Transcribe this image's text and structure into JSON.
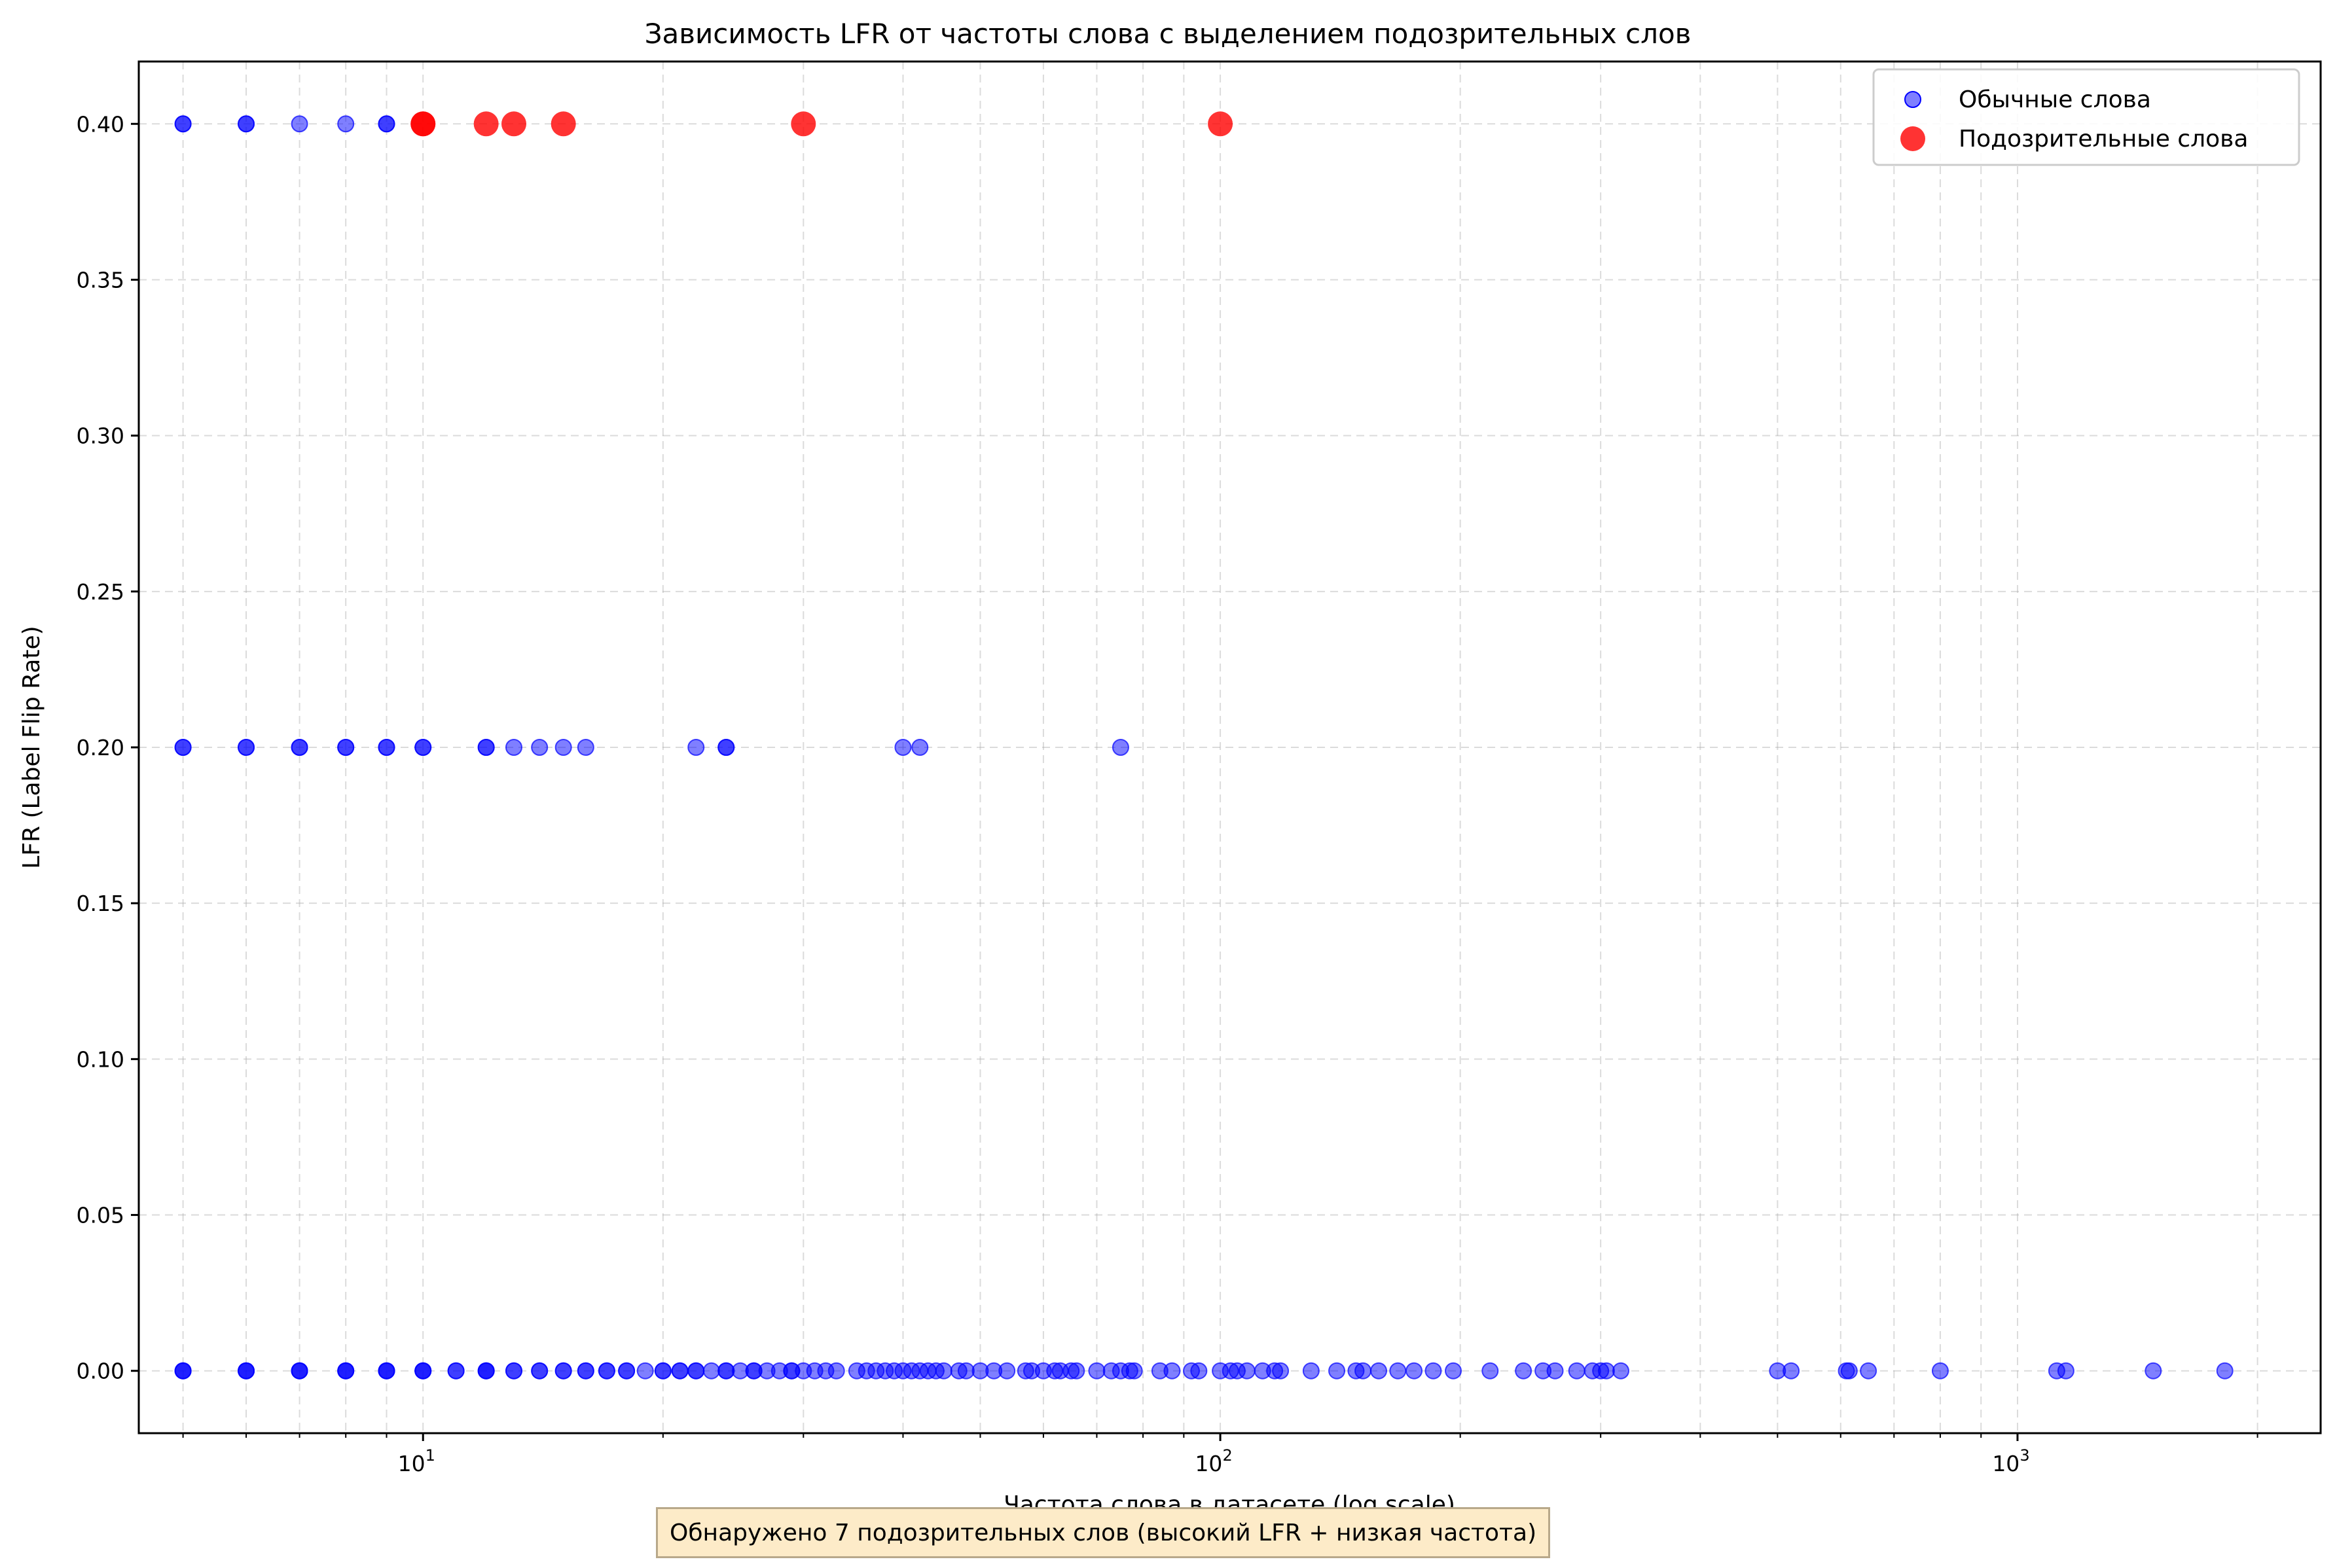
{
  "chart_data": {
    "type": "scatter",
    "title": "Зависимость LFR от частоты слова с выделением подозрительных слов",
    "xlabel": "Частота слова в датасете (log scale)",
    "ylabel": "LFR (Label Flip Rate)",
    "xscale": "log",
    "xlim": [
      4.4,
      2400
    ],
    "ylim": [
      -0.02,
      0.42
    ],
    "x_ticks": [
      {
        "value": 10,
        "base": "10",
        "exp": "1"
      },
      {
        "value": 100,
        "base": "10",
        "exp": "2"
      },
      {
        "value": 1000,
        "base": "10",
        "exp": "3"
      }
    ],
    "y_ticks": [
      "0.00",
      "0.05",
      "0.10",
      "0.15",
      "0.20",
      "0.25",
      "0.30",
      "0.35",
      "0.40"
    ],
    "grid": true,
    "legend_position": "top-right",
    "annotation": "Обнаружено 7 подозрительных слов (высокий LFR + низкая частота)",
    "series": [
      {
        "name": "Обычные слова",
        "color": "#0000ff",
        "alpha": 0.5,
        "marker": "small-circle",
        "points": [
          [
            5,
            0.4
          ],
          [
            6,
            0.4
          ],
          [
            7,
            0.4
          ],
          [
            8,
            0.4
          ],
          [
            9,
            0.4
          ],
          [
            9,
            0.4
          ],
          [
            6,
            0.4
          ],
          [
            5,
            0.4
          ],
          [
            5,
            0.2
          ],
          [
            5,
            0.2
          ],
          [
            6,
            0.2
          ],
          [
            6,
            0.2
          ],
          [
            7,
            0.2
          ],
          [
            7,
            0.2
          ],
          [
            8,
            0.2
          ],
          [
            8,
            0.2
          ],
          [
            9,
            0.2
          ],
          [
            9,
            0.2
          ],
          [
            10,
            0.2
          ],
          [
            10,
            0.2
          ],
          [
            12,
            0.2
          ],
          [
            12,
            0.2
          ],
          [
            13,
            0.2
          ],
          [
            14,
            0.2
          ],
          [
            15,
            0.2
          ],
          [
            16,
            0.2
          ],
          [
            22,
            0.2
          ],
          [
            24,
            0.2
          ],
          [
            24,
            0.2
          ],
          [
            40,
            0.2
          ],
          [
            42,
            0.2
          ],
          [
            75,
            0.2
          ],
          [
            5,
            0
          ],
          [
            5,
            0
          ],
          [
            5,
            0
          ],
          [
            6,
            0
          ],
          [
            6,
            0
          ],
          [
            6,
            0
          ],
          [
            7,
            0
          ],
          [
            7,
            0
          ],
          [
            7,
            0
          ],
          [
            8,
            0
          ],
          [
            8,
            0
          ],
          [
            8,
            0
          ],
          [
            9,
            0
          ],
          [
            9,
            0
          ],
          [
            9,
            0
          ],
          [
            10,
            0
          ],
          [
            10,
            0
          ],
          [
            10,
            0
          ],
          [
            11,
            0
          ],
          [
            11,
            0
          ],
          [
            12,
            0
          ],
          [
            12,
            0
          ],
          [
            12,
            0
          ],
          [
            13,
            0
          ],
          [
            13,
            0
          ],
          [
            14,
            0
          ],
          [
            14,
            0
          ],
          [
            15,
            0
          ],
          [
            15,
            0
          ],
          [
            16,
            0
          ],
          [
            16,
            0
          ],
          [
            17,
            0
          ],
          [
            17,
            0
          ],
          [
            18,
            0
          ],
          [
            18,
            0
          ],
          [
            19,
            0
          ],
          [
            20,
            0
          ],
          [
            20,
            0
          ],
          [
            21,
            0
          ],
          [
            21,
            0
          ],
          [
            22,
            0
          ],
          [
            22,
            0
          ],
          [
            23,
            0
          ],
          [
            24,
            0
          ],
          [
            24,
            0
          ],
          [
            25,
            0
          ],
          [
            26,
            0
          ],
          [
            26,
            0
          ],
          [
            27,
            0
          ],
          [
            28,
            0
          ],
          [
            29,
            0
          ],
          [
            29,
            0
          ],
          [
            30,
            0
          ],
          [
            31,
            0
          ],
          [
            32,
            0
          ],
          [
            33,
            0
          ],
          [
            35,
            0
          ],
          [
            36,
            0
          ],
          [
            37,
            0
          ],
          [
            38,
            0
          ],
          [
            39,
            0
          ],
          [
            40,
            0
          ],
          [
            41,
            0
          ],
          [
            42,
            0
          ],
          [
            43,
            0
          ],
          [
            44,
            0
          ],
          [
            45,
            0
          ],
          [
            47,
            0
          ],
          [
            48,
            0
          ],
          [
            50,
            0
          ],
          [
            52,
            0
          ],
          [
            54,
            0
          ],
          [
            57,
            0
          ],
          [
            58,
            0
          ],
          [
            60,
            0
          ],
          [
            62,
            0
          ],
          [
            63,
            0
          ],
          [
            65,
            0
          ],
          [
            66,
            0
          ],
          [
            70,
            0
          ],
          [
            73,
            0
          ],
          [
            75,
            0
          ],
          [
            77,
            0
          ],
          [
            78,
            0
          ],
          [
            84,
            0
          ],
          [
            87,
            0
          ],
          [
            92,
            0
          ],
          [
            94,
            0
          ],
          [
            100,
            0
          ],
          [
            103,
            0
          ],
          [
            105,
            0
          ],
          [
            108,
            0
          ],
          [
            113,
            0
          ],
          [
            117,
            0
          ],
          [
            119,
            0
          ],
          [
            130,
            0
          ],
          [
            140,
            0
          ],
          [
            148,
            0
          ],
          [
            151,
            0
          ],
          [
            158,
            0
          ],
          [
            167,
            0
          ],
          [
            175,
            0
          ],
          [
            185,
            0
          ],
          [
            196,
            0
          ],
          [
            218,
            0
          ],
          [
            240,
            0
          ],
          [
            254,
            0
          ],
          [
            263,
            0
          ],
          [
            280,
            0
          ],
          [
            293,
            0
          ],
          [
            300,
            0
          ],
          [
            305,
            0
          ],
          [
            318,
            0
          ],
          [
            500,
            0
          ],
          [
            520,
            0
          ],
          [
            610,
            0
          ],
          [
            615,
            0
          ],
          [
            650,
            0
          ],
          [
            800,
            0
          ],
          [
            1120,
            0
          ],
          [
            1150,
            0
          ],
          [
            1480,
            0
          ],
          [
            1820,
            0
          ]
        ]
      },
      {
        "name": "Подозрительные слова",
        "color": "#ff0000",
        "alpha": 0.8,
        "marker": "large-circle",
        "points": [
          [
            10,
            0.4
          ],
          [
            10,
            0.4
          ],
          [
            12,
            0.4
          ],
          [
            13,
            0.4
          ],
          [
            15,
            0.4
          ],
          [
            30,
            0.4
          ],
          [
            100,
            0.4
          ]
        ]
      }
    ]
  }
}
